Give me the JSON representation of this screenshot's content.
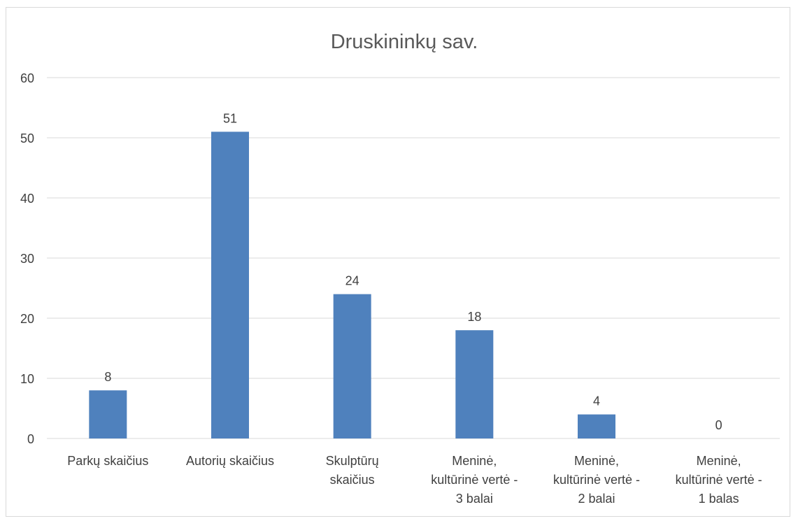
{
  "chart_data": {
    "type": "bar",
    "title": "Druskininkų sav.",
    "xlabel": "",
    "ylabel": "",
    "ylim": [
      0,
      60
    ],
    "yticks": [
      0,
      10,
      20,
      30,
      40,
      50,
      60
    ],
    "grid": true,
    "legend": "none",
    "categories": [
      [
        "Parkų skaičius"
      ],
      [
        "Autorių skaičius"
      ],
      [
        "Skulptūrų",
        "skaičius"
      ],
      [
        "Meninė,",
        "kultūrinė vertė -",
        "3 balai"
      ],
      [
        "Meninė,",
        "kultūrinė vertė -",
        "2 balai"
      ],
      [
        "Meninė,",
        "kultūrinė vertė -",
        "1 balas"
      ]
    ],
    "values": [
      8,
      51,
      24,
      18,
      4,
      0
    ],
    "data_labels": [
      "8",
      "51",
      "24",
      "18",
      "4",
      "0"
    ],
    "colors": {
      "bar": "#4f81bd",
      "grid": "#d9d9d9",
      "text": "#404040",
      "title": "#595959",
      "frame": "#d9d9d9"
    }
  }
}
